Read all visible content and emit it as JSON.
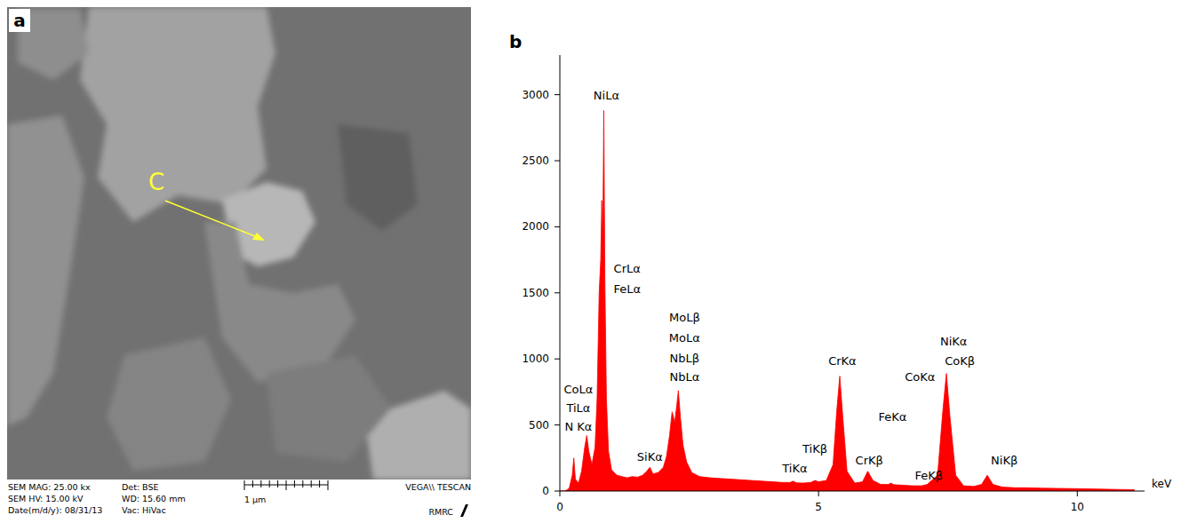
{
  "image_panel": {
    "label": "a",
    "annotation": "C",
    "info_left": [
      "SEM MAG: 25.00 kx",
      "SEM HV: 15.00 kV",
      "Date(m/d/y): 08/31/13"
    ],
    "info_mid": [
      "Det: BSE",
      "WD: 15.60 mm",
      "Vac: HiVac"
    ],
    "scale_bar": "1 μm",
    "brand": "VEGA\\\\ TESCAN",
    "lab": "RMRC"
  },
  "chart_data": {
    "type": "area",
    "panel_label": "b",
    "x_label": "keV",
    "x": [
      0.0,
      0.1,
      0.18,
      0.24,
      0.27,
      0.3,
      0.36,
      0.42,
      0.48,
      0.52,
      0.56,
      0.62,
      0.68,
      0.72,
      0.76,
      0.79,
      0.81,
      0.83,
      0.85,
      0.87,
      0.9,
      0.94,
      1.0,
      1.1,
      1.2,
      1.3,
      1.4,
      1.5,
      1.6,
      1.68,
      1.74,
      1.8,
      1.9,
      2.0,
      2.06,
      2.12,
      2.17,
      2.22,
      2.26,
      2.29,
      2.33,
      2.38,
      2.45,
      2.55,
      2.7,
      2.9,
      3.1,
      3.3,
      3.5,
      3.7,
      3.9,
      4.1,
      4.3,
      4.45,
      4.51,
      4.57,
      4.7,
      4.85,
      4.93,
      5.0,
      5.15,
      5.28,
      5.35,
      5.41,
      5.47,
      5.55,
      5.7,
      5.85,
      5.95,
      6.05,
      6.2,
      6.35,
      6.4,
      6.45,
      6.6,
      6.8,
      7.0,
      7.1,
      7.3,
      7.4,
      7.47,
      7.54,
      7.65,
      7.8,
      8.0,
      8.15,
      8.26,
      8.37,
      8.55,
      8.8,
      9.0,
      9.3,
      9.6,
      10.0,
      10.4,
      10.8,
      11.1
    ],
    "values": [
      0,
      0,
      20,
      120,
      250,
      90,
      60,
      150,
      330,
      420,
      300,
      200,
      330,
      700,
      1500,
      1750,
      2200,
      1900,
      2880,
      1600,
      700,
      300,
      160,
      120,
      110,
      100,
      110,
      105,
      120,
      150,
      180,
      130,
      140,
      180,
      260,
      420,
      600,
      520,
      650,
      760,
      560,
      350,
      220,
      140,
      110,
      100,
      95,
      90,
      85,
      80,
      75,
      70,
      65,
      65,
      75,
      62,
      60,
      65,
      80,
      70,
      80,
      200,
      600,
      870,
      550,
      150,
      60,
      70,
      150,
      80,
      50,
      50,
      60,
      48,
      45,
      40,
      40,
      50,
      120,
      600,
      890,
      560,
      120,
      40,
      35,
      50,
      120,
      50,
      30,
      25,
      25,
      22,
      20,
      18,
      15,
      12,
      10
    ],
    "color": "#ff0000",
    "xlim": [
      0,
      11.3
    ],
    "xticks": [
      0,
      5,
      10
    ],
    "ylim": [
      0,
      3300
    ],
    "yticks": [
      0,
      500,
      1000,
      1500,
      2000,
      2500,
      3000
    ],
    "grid": false,
    "annotations": [
      {
        "text": "NiLα",
        "x": 0.9,
        "y": 3000
      },
      {
        "text": "CrLα",
        "x": 1.3,
        "y": 1690
      },
      {
        "text": "FeLα",
        "x": 1.3,
        "y": 1530
      },
      {
        "text": "CoLα",
        "x": 0.36,
        "y": 775
      },
      {
        "text": "TiLα",
        "x": 0.36,
        "y": 630
      },
      {
        "text": "N Kα",
        "x": 0.36,
        "y": 490
      },
      {
        "text": "MoLβ",
        "x": 2.41,
        "y": 1315
      },
      {
        "text": "MoLα",
        "x": 2.41,
        "y": 1165
      },
      {
        "text": "NbLβ",
        "x": 2.41,
        "y": 1010
      },
      {
        "text": "NbLα",
        "x": 2.41,
        "y": 865
      },
      {
        "text": "SiKα",
        "x": 1.74,
        "y": 260
      },
      {
        "text": "TiKα",
        "x": 4.54,
        "y": 175
      },
      {
        "text": "TiKβ",
        "x": 4.93,
        "y": 325
      },
      {
        "text": "CrKα",
        "x": 5.46,
        "y": 985
      },
      {
        "text": "CrKβ",
        "x": 5.98,
        "y": 235
      },
      {
        "text": "FeKα",
        "x": 6.43,
        "y": 565
      },
      {
        "text": "CoKα",
        "x": 6.96,
        "y": 870
      },
      {
        "text": "FeKβ",
        "x": 7.13,
        "y": 120
      },
      {
        "text": "NiKα",
        "x": 7.61,
        "y": 1135
      },
      {
        "text": "CoKβ",
        "x": 7.73,
        "y": 985
      },
      {
        "text": "NiKβ",
        "x": 8.59,
        "y": 235
      }
    ]
  }
}
